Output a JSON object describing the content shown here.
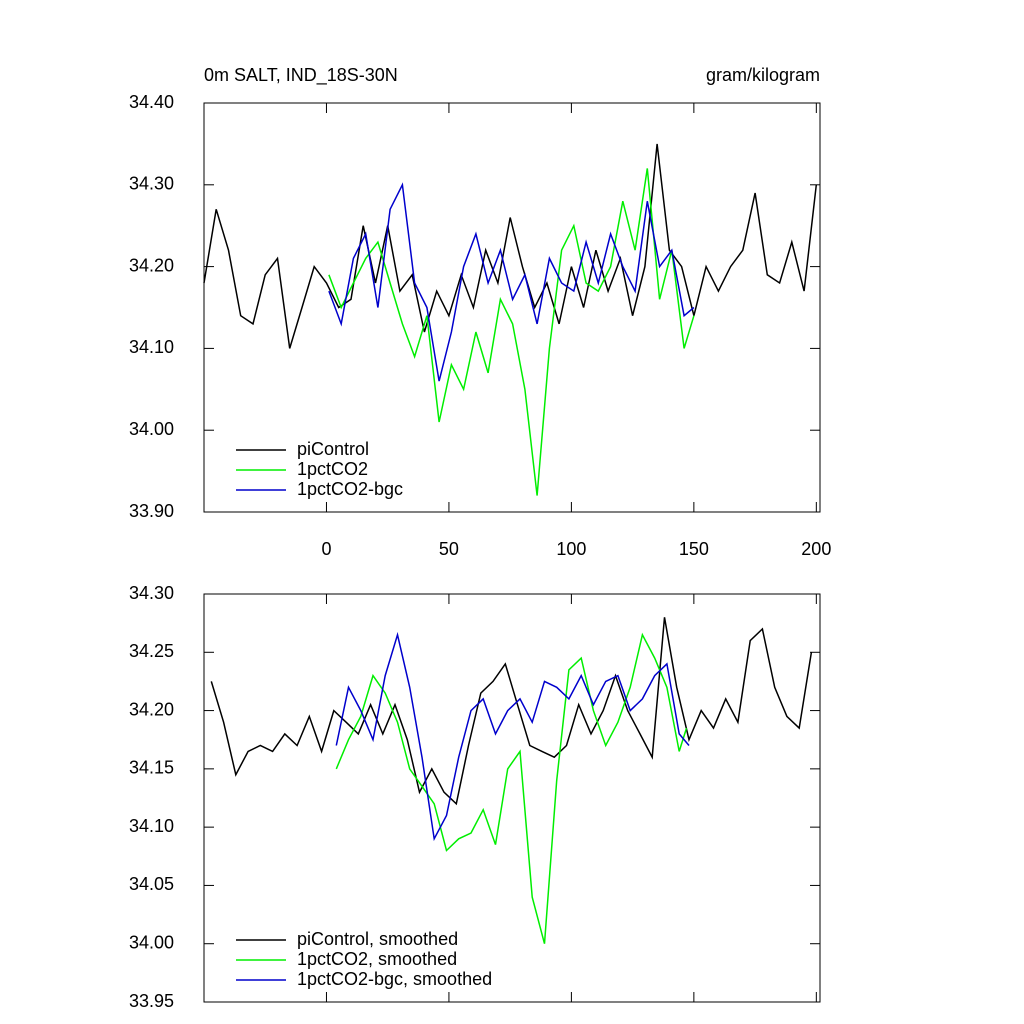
{
  "chart_data": [
    {
      "type": "line",
      "title": "0m SALT, IND_18S-30N",
      "units": "gram/kilogram",
      "xlim": [
        -50,
        201.5
      ],
      "xticks": [
        0,
        50,
        100,
        150,
        200
      ],
      "ylim": [
        33.9,
        34.4
      ],
      "yticks": [
        {
          "value": 34.4,
          "label": "34.40"
        },
        {
          "value": 34.3,
          "label": "34.30"
        },
        {
          "value": 34.2,
          "label": "34.20"
        },
        {
          "value": 34.1,
          "label": "34.10"
        },
        {
          "value": 34.0,
          "label": "34.00"
        },
        {
          "value": 33.9,
          "label": "33.90"
        }
      ],
      "legend": "lower left",
      "series": [
        {
          "name": "piControl",
          "color": "#000000",
          "x": [
            -50,
            -45,
            -40,
            -35,
            -30,
            -25,
            -20,
            -15,
            -10,
            -5,
            0,
            5,
            10,
            15,
            20,
            25,
            30,
            35,
            40,
            45,
            50,
            55,
            60,
            65,
            70,
            75,
            80,
            85,
            90,
            95,
            100,
            105,
            110,
            115,
            120,
            125,
            130,
            135,
            140,
            145,
            150,
            155,
            160,
            165,
            170,
            175,
            180,
            185,
            190,
            195,
            200
          ],
          "values": [
            34.18,
            34.27,
            34.22,
            34.14,
            34.13,
            34.19,
            34.21,
            34.1,
            34.15,
            34.2,
            34.18,
            34.15,
            34.16,
            34.25,
            34.18,
            34.25,
            34.17,
            34.19,
            34.12,
            34.17,
            34.14,
            34.19,
            34.15,
            34.22,
            34.18,
            34.26,
            34.2,
            34.15,
            34.18,
            34.13,
            34.2,
            34.15,
            34.22,
            34.17,
            34.21,
            34.14,
            34.2,
            34.35,
            34.22,
            34.2,
            34.14,
            34.2,
            34.17,
            34.2,
            34.22,
            34.29,
            34.19,
            34.18,
            34.23,
            34.17,
            34.3
          ]
        },
        {
          "name": "1pctCO2",
          "color": "#00ee00",
          "x": [
            1,
            6,
            11,
            16,
            21,
            26,
            31,
            36,
            41,
            46,
            51,
            56,
            61,
            66,
            71,
            76,
            81,
            86,
            91,
            96,
            101,
            106,
            111,
            116,
            121,
            126,
            131,
            136,
            141,
            146,
            150
          ],
          "values": [
            34.19,
            34.15,
            34.18,
            34.21,
            34.23,
            34.18,
            34.13,
            34.09,
            34.14,
            34.01,
            34.08,
            34.05,
            34.12,
            34.07,
            34.16,
            34.13,
            34.05,
            33.92,
            34.1,
            34.22,
            34.25,
            34.18,
            34.17,
            34.2,
            34.28,
            34.22,
            34.32,
            34.16,
            34.22,
            34.1,
            34.14
          ]
        },
        {
          "name": "1pctCO2-bgc",
          "color": "#0000cc",
          "x": [
            1,
            6,
            11,
            16,
            21,
            26,
            31,
            36,
            41,
            46,
            51,
            56,
            61,
            66,
            71,
            76,
            81,
            86,
            91,
            96,
            101,
            106,
            111,
            116,
            121,
            126,
            131,
            136,
            141,
            146,
            150
          ],
          "values": [
            34.17,
            34.13,
            34.21,
            34.24,
            34.15,
            34.27,
            34.3,
            34.18,
            34.15,
            34.06,
            34.12,
            34.2,
            34.24,
            34.18,
            34.22,
            34.16,
            34.19,
            34.13,
            34.21,
            34.18,
            34.17,
            34.23,
            34.18,
            34.24,
            34.2,
            34.17,
            34.28,
            34.2,
            34.22,
            34.14,
            34.15
          ]
        }
      ]
    },
    {
      "type": "line",
      "xlim": [
        -50,
        201.5
      ],
      "xticks": [
        0,
        50,
        100,
        150,
        200
      ],
      "ylim": [
        33.95,
        34.3
      ],
      "yticks": [
        {
          "value": 34.3,
          "label": "34.30"
        },
        34.25,
        {
          "value": 34.2,
          "label": "34.20"
        },
        34.15,
        {
          "value": 34.1,
          "label": "34.10"
        },
        34.05,
        {
          "value": 34.0,
          "label": "34.00"
        },
        33.95
      ],
      "legend": "lower left",
      "series": [
        {
          "name": "piControl, smoothed",
          "color": "#000000",
          "x": [
            -47,
            -42,
            -37,
            -32,
            -27,
            -22,
            -17,
            -12,
            -7,
            -2,
            3,
            8,
            13,
            18,
            23,
            28,
            33,
            38,
            43,
            48,
            53,
            58,
            63,
            68,
            73,
            78,
            83,
            88,
            93,
            98,
            103,
            108,
            113,
            118,
            123,
            128,
            133,
            138,
            143,
            148,
            153,
            158,
            163,
            168,
            173,
            178,
            183,
            188,
            193,
            198
          ],
          "values": [
            34.225,
            34.19,
            34.145,
            34.165,
            34.17,
            34.165,
            34.18,
            34.17,
            34.195,
            34.165,
            34.2,
            34.19,
            34.18,
            34.205,
            34.18,
            34.205,
            34.175,
            34.13,
            34.15,
            34.13,
            34.12,
            34.17,
            34.215,
            34.225,
            34.24,
            34.205,
            34.17,
            34.165,
            34.16,
            34.17,
            34.205,
            34.18,
            34.2,
            34.23,
            34.2,
            34.18,
            34.16,
            34.28,
            34.22,
            34.175,
            34.2,
            34.185,
            34.21,
            34.19,
            34.26,
            34.27,
            34.22,
            34.195,
            34.185,
            34.25
          ]
        },
        {
          "name": "1pctCO2, smoothed",
          "color": "#00ee00",
          "x": [
            4,
            9,
            14,
            19,
            24,
            29,
            34,
            39,
            44,
            49,
            54,
            59,
            64,
            69,
            74,
            79,
            84,
            89,
            94,
            99,
            104,
            109,
            114,
            119,
            124,
            129,
            134,
            139,
            144,
            147
          ],
          "values": [
            34.15,
            34.175,
            34.195,
            34.23,
            34.215,
            34.19,
            34.15,
            34.135,
            34.12,
            34.08,
            34.09,
            34.095,
            34.115,
            34.085,
            34.15,
            34.165,
            34.04,
            34.0,
            34.14,
            34.235,
            34.245,
            34.2,
            34.17,
            34.19,
            34.22,
            34.265,
            34.245,
            34.22,
            34.165,
            34.185
          ]
        },
        {
          "name": "1pctCO2-bgc, smoothed",
          "color": "#0000cc",
          "x": [
            4,
            9,
            14,
            19,
            24,
            29,
            34,
            39,
            44,
            49,
            54,
            59,
            64,
            69,
            74,
            79,
            84,
            89,
            94,
            99,
            104,
            109,
            114,
            119,
            124,
            129,
            134,
            139,
            144,
            148
          ],
          "values": [
            34.17,
            34.22,
            34.2,
            34.175,
            34.23,
            34.265,
            34.22,
            34.16,
            34.09,
            34.11,
            34.16,
            34.2,
            34.21,
            34.18,
            34.2,
            34.21,
            34.19,
            34.225,
            34.22,
            34.21,
            34.23,
            34.205,
            34.225,
            34.23,
            34.2,
            34.21,
            34.23,
            34.24,
            34.18,
            34.17
          ]
        }
      ]
    }
  ]
}
